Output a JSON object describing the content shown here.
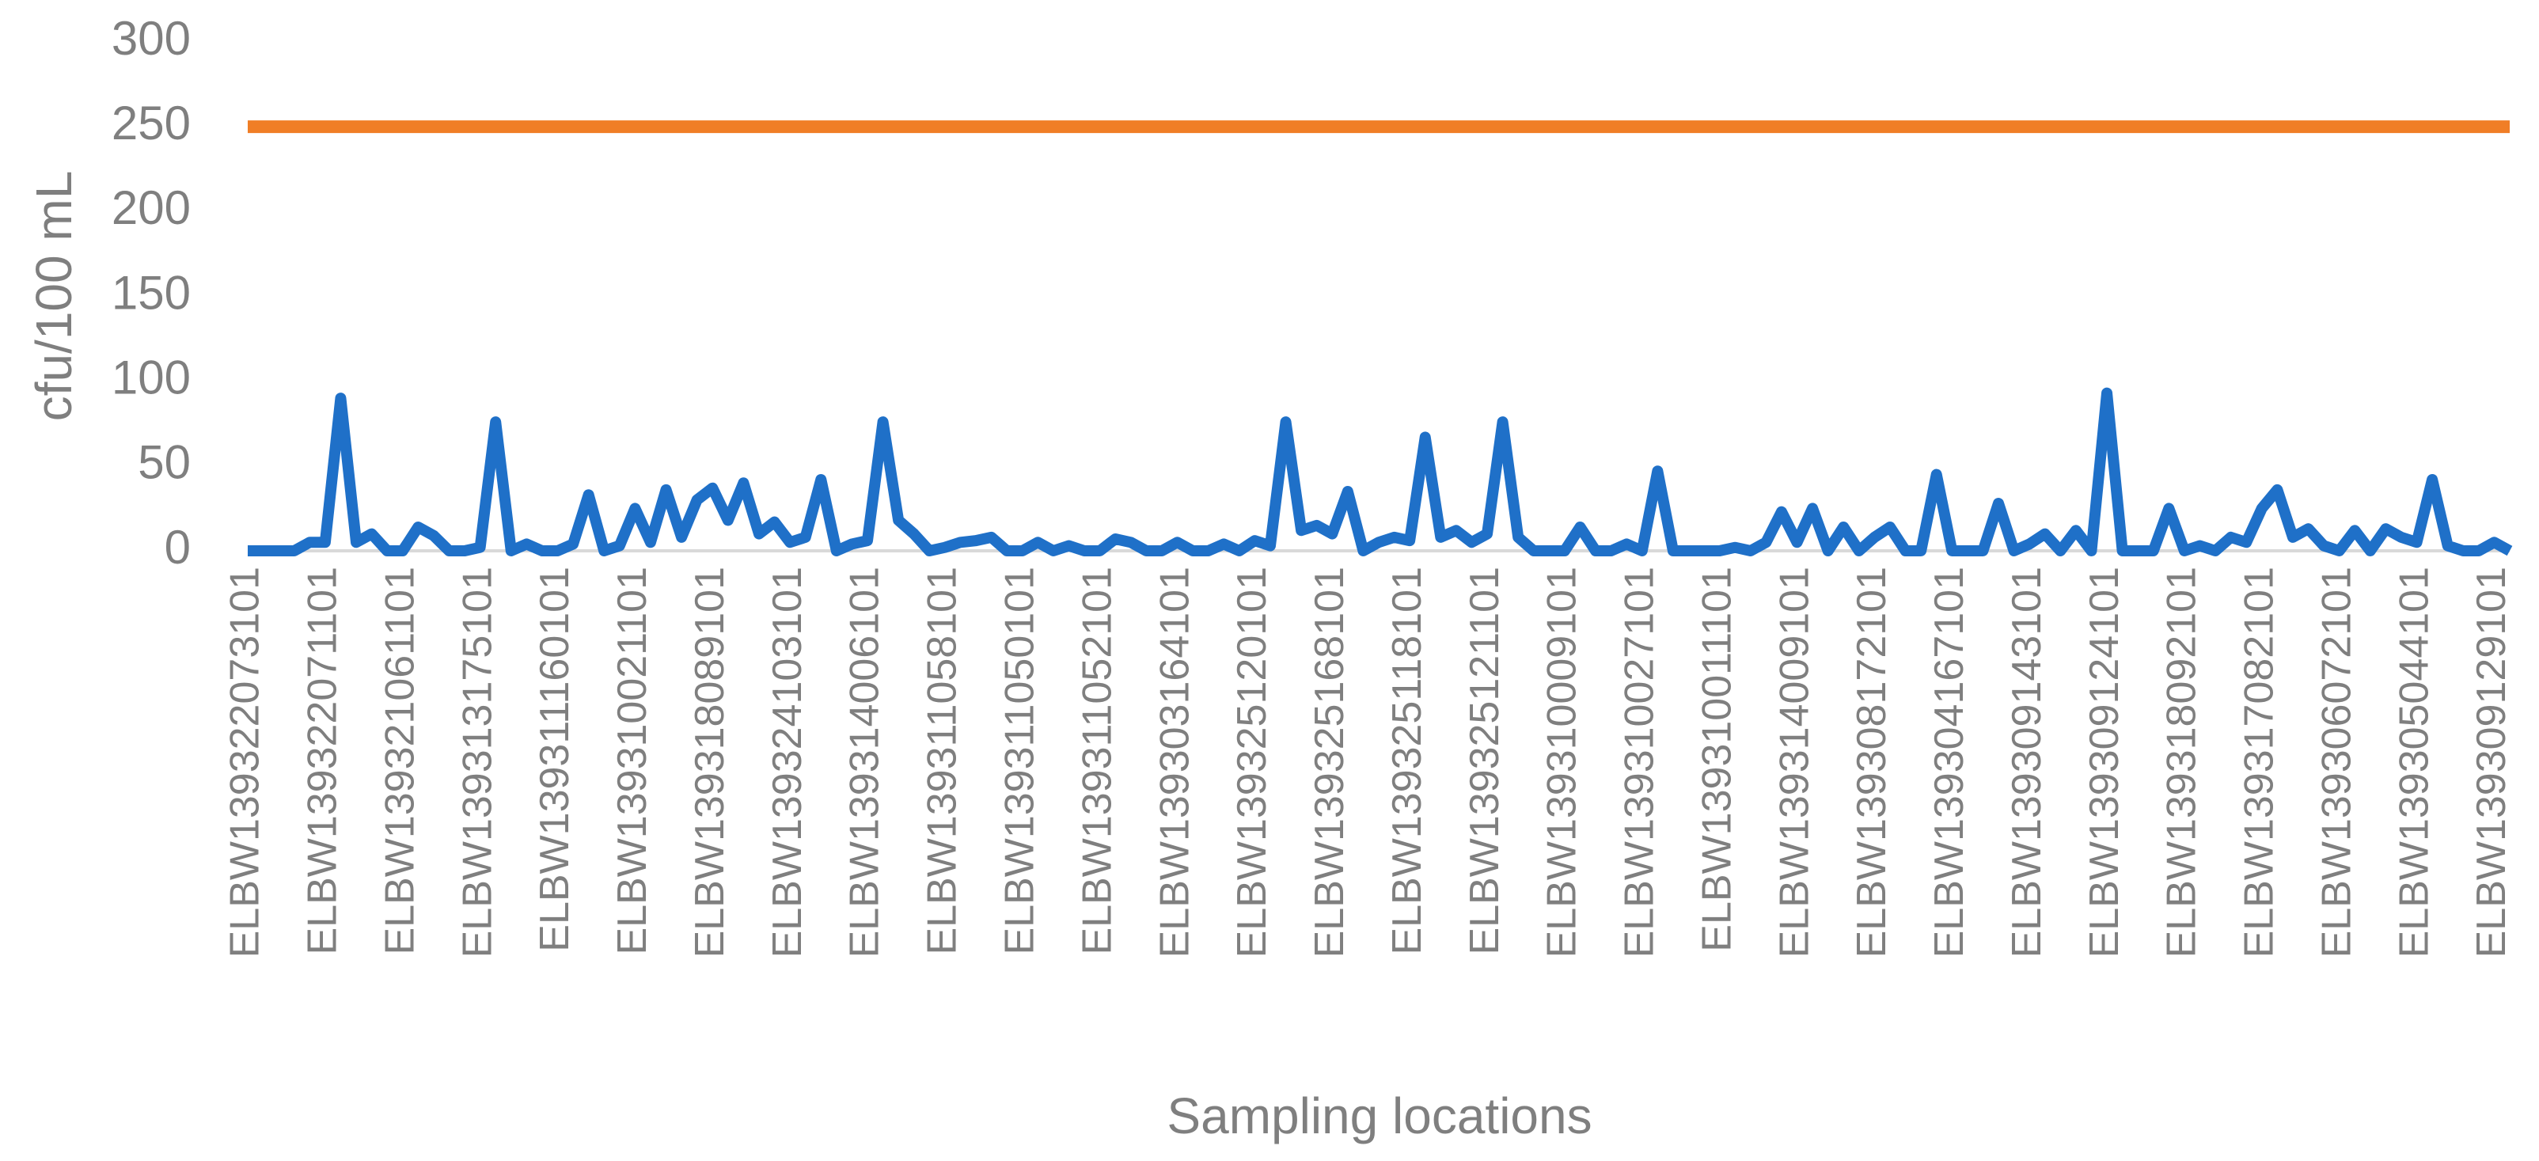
{
  "chart_data": {
    "type": "line",
    "xlabel": "Sampling locations",
    "ylabel": "cfu/100 mL",
    "ylim": [
      0,
      300
    ],
    "yticks": [
      0,
      50,
      100,
      150,
      200,
      250,
      300
    ],
    "grid": false,
    "categories": [
      "ELBW139322073101",
      null,
      null,
      null,
      null,
      "ELBW139322071101",
      null,
      null,
      null,
      null,
      "ELBW139321061101",
      null,
      null,
      null,
      null,
      "ELBW139313175101",
      null,
      null,
      null,
      null,
      "ELBW139311160101",
      null,
      null,
      null,
      null,
      "ELBW139310021101",
      null,
      null,
      null,
      null,
      "ELBW139318089101",
      null,
      null,
      null,
      null,
      "ELBW139324103101",
      null,
      null,
      null,
      null,
      "ELBW139314006101",
      null,
      null,
      null,
      null,
      "ELBW139311058101",
      null,
      null,
      null,
      null,
      "ELBW139311050101",
      null,
      null,
      null,
      null,
      "ELBW139311052101",
      null,
      null,
      null,
      null,
      "ELBW139303164101",
      null,
      null,
      null,
      null,
      "ELBW139325120101",
      null,
      null,
      null,
      null,
      "ELBW139325168101",
      null,
      null,
      null,
      null,
      "ELBW139325118101",
      null,
      null,
      null,
      null,
      "ELBW139325121101",
      null,
      null,
      null,
      null,
      "ELBW139310009101",
      null,
      null,
      null,
      null,
      "ELBW139310027101",
      null,
      null,
      null,
      null,
      "ELBW139310011101",
      null,
      null,
      null,
      null,
      "ELBW139314009101",
      null,
      null,
      null,
      null,
      "ELBW139308172101",
      null,
      null,
      null,
      null,
      "ELBW139304167101",
      null,
      null,
      null,
      null,
      "ELBW139309143101",
      null,
      null,
      null,
      null,
      "ELBW139309124101",
      null,
      null,
      null,
      null,
      "ELBW139318092101",
      null,
      null,
      null,
      null,
      "ELBW139317082101",
      null,
      null,
      null,
      null,
      "ELBW139306072101",
      null,
      null,
      null,
      null,
      "ELBW139305044101",
      null,
      null,
      null,
      null,
      "ELBW139309129101",
      null
    ],
    "series": [
      {
        "color": "#1f70c8",
        "values": [
          0,
          0,
          0,
          0,
          5,
          5,
          90,
          5,
          10,
          0,
          0,
          14,
          9,
          0,
          0,
          2,
          76,
          0,
          4,
          0,
          0,
          4,
          33,
          0,
          3,
          25,
          5,
          36,
          8,
          30,
          37,
          18,
          40,
          10,
          17,
          5,
          8,
          42,
          0,
          4,
          6,
          76,
          18,
          10,
          0,
          2,
          5,
          6,
          8,
          0,
          0,
          5,
          0,
          3,
          0,
          0,
          7,
          5,
          0,
          0,
          5,
          0,
          0,
          4,
          0,
          6,
          3,
          76,
          12,
          15,
          10,
          35,
          0,
          5,
          8,
          6,
          67,
          8,
          12,
          5,
          10,
          76,
          8,
          0,
          0,
          0,
          14,
          0,
          0,
          4,
          0,
          47,
          0,
          0,
          0,
          0,
          2,
          0,
          5,
          23,
          5,
          25,
          0,
          14,
          0,
          8,
          14,
          0,
          0,
          45,
          0,
          0,
          0,
          28,
          0,
          4,
          10,
          0,
          12,
          0,
          93,
          0,
          0,
          0,
          25,
          0,
          3,
          0,
          8,
          5,
          25,
          36,
          8,
          13,
          3,
          0,
          12,
          0,
          13,
          8,
          5,
          42,
          3,
          0,
          0,
          5,
          0
        ]
      },
      {
        "color": "#f07e26",
        "values": [
          250,
          250,
          250,
          250,
          250,
          250,
          250,
          250,
          250,
          250,
          250,
          250,
          250,
          250,
          250,
          250,
          250,
          250,
          250,
          250,
          250,
          250,
          250,
          250,
          250,
          250,
          250,
          250,
          250,
          250,
          250,
          250,
          250,
          250,
          250,
          250,
          250,
          250,
          250,
          250,
          250,
          250,
          250,
          250,
          250,
          250,
          250,
          250,
          250,
          250,
          250,
          250,
          250,
          250,
          250,
          250,
          250,
          250,
          250,
          250,
          250,
          250,
          250,
          250,
          250,
          250,
          250,
          250,
          250,
          250,
          250,
          250,
          250,
          250,
          250,
          250,
          250,
          250,
          250,
          250,
          250,
          250,
          250,
          250,
          250,
          250,
          250,
          250,
          250,
          250,
          250,
          250,
          250,
          250,
          250,
          250,
          250,
          250,
          250,
          250,
          250,
          250,
          250,
          250,
          250,
          250,
          250,
          250,
          250,
          250,
          250,
          250,
          250,
          250,
          250,
          250,
          250,
          250,
          250,
          250,
          250,
          250,
          250,
          250,
          250,
          250,
          250,
          250,
          250,
          250,
          250,
          250,
          250,
          250,
          250,
          250,
          250,
          250,
          250,
          250,
          250,
          250,
          250,
          250,
          250,
          250,
          250
        ]
      }
    ]
  }
}
